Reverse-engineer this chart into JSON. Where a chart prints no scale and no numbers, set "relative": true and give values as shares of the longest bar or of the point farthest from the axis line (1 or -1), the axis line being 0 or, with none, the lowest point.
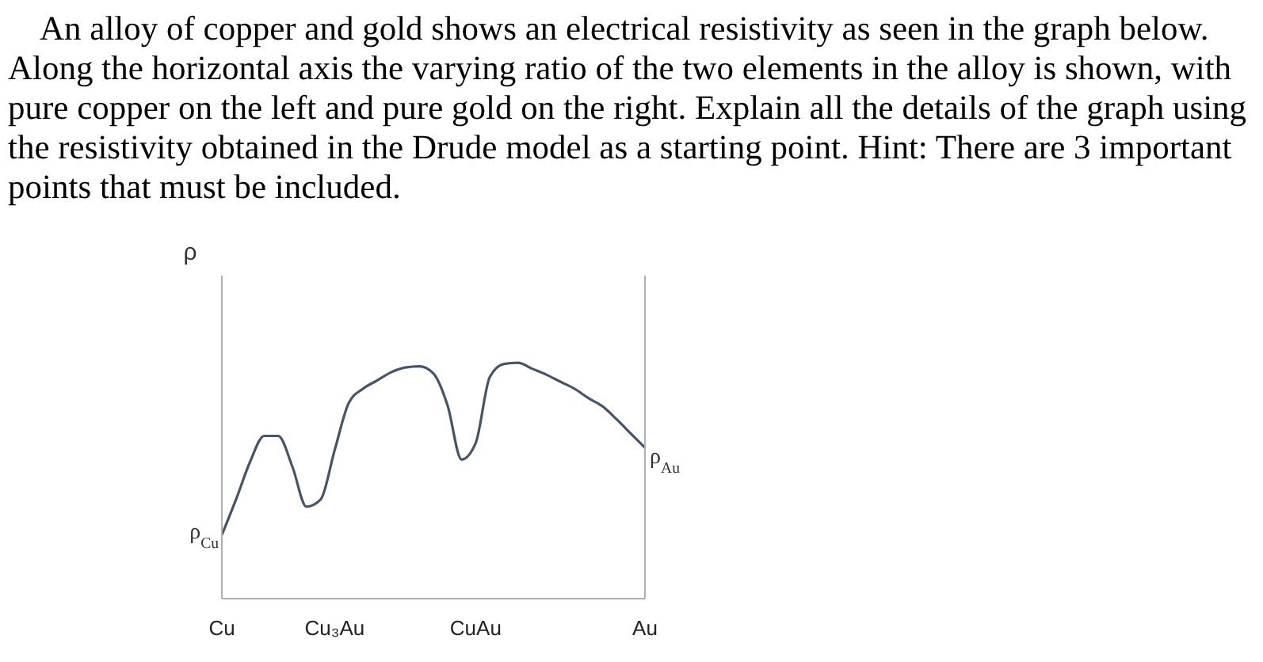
{
  "chart_data": {
    "type": "line",
    "title": "An alloy of copper and gold shows an electrical resistivity as seen in the graph below. Along the horizontal axis the varying ratio of the two elements in the alloy is shown, with pure copper on the left and pure gold on the right. Explain all the details of the graph using the resistivity obtained in the Drude model as a starting point. Hint: There are 3 important points that must be included.",
    "ylabel": "ρ",
    "relative": true,
    "categories": [
      "Cu",
      null,
      null,
      null,
      null,
      null,
      null,
      null,
      "Cu₃Au",
      null,
      null,
      null,
      null,
      null,
      null,
      null,
      null,
      null,
      "CuAu",
      null,
      null,
      null,
      null,
      null,
      null,
      null,
      null,
      null,
      null,
      null,
      "Au"
    ],
    "tick_labels": "x",
    "series": [
      {
        "color": "#44546a",
        "values": [
          0.27,
          0.42,
          0.58,
          0.69,
          0.69,
          0.56,
          0.39,
          0.42,
          0.63,
          0.83,
          0.89,
          0.925,
          0.96,
          0.98,
          0.985,
          0.955,
          0.82,
          0.59,
          0.66,
          0.94,
          0.995,
          1,
          0.975,
          0.95,
          0.92,
          0.89,
          0.85,
          0.815,
          0.76,
          0.7,
          0.64
        ]
      }
    ],
    "annotations": [
      {
        "text": "ρ$_{Cu}$",
        "x": "Cu",
        "y": 0.27
      },
      {
        "text": "ρ$_{Au}$",
        "x": "Au",
        "y": 0.64
      }
    ],
    "marker": "none",
    "line_style": "solid",
    "grid": false,
    "legend": false
  }
}
